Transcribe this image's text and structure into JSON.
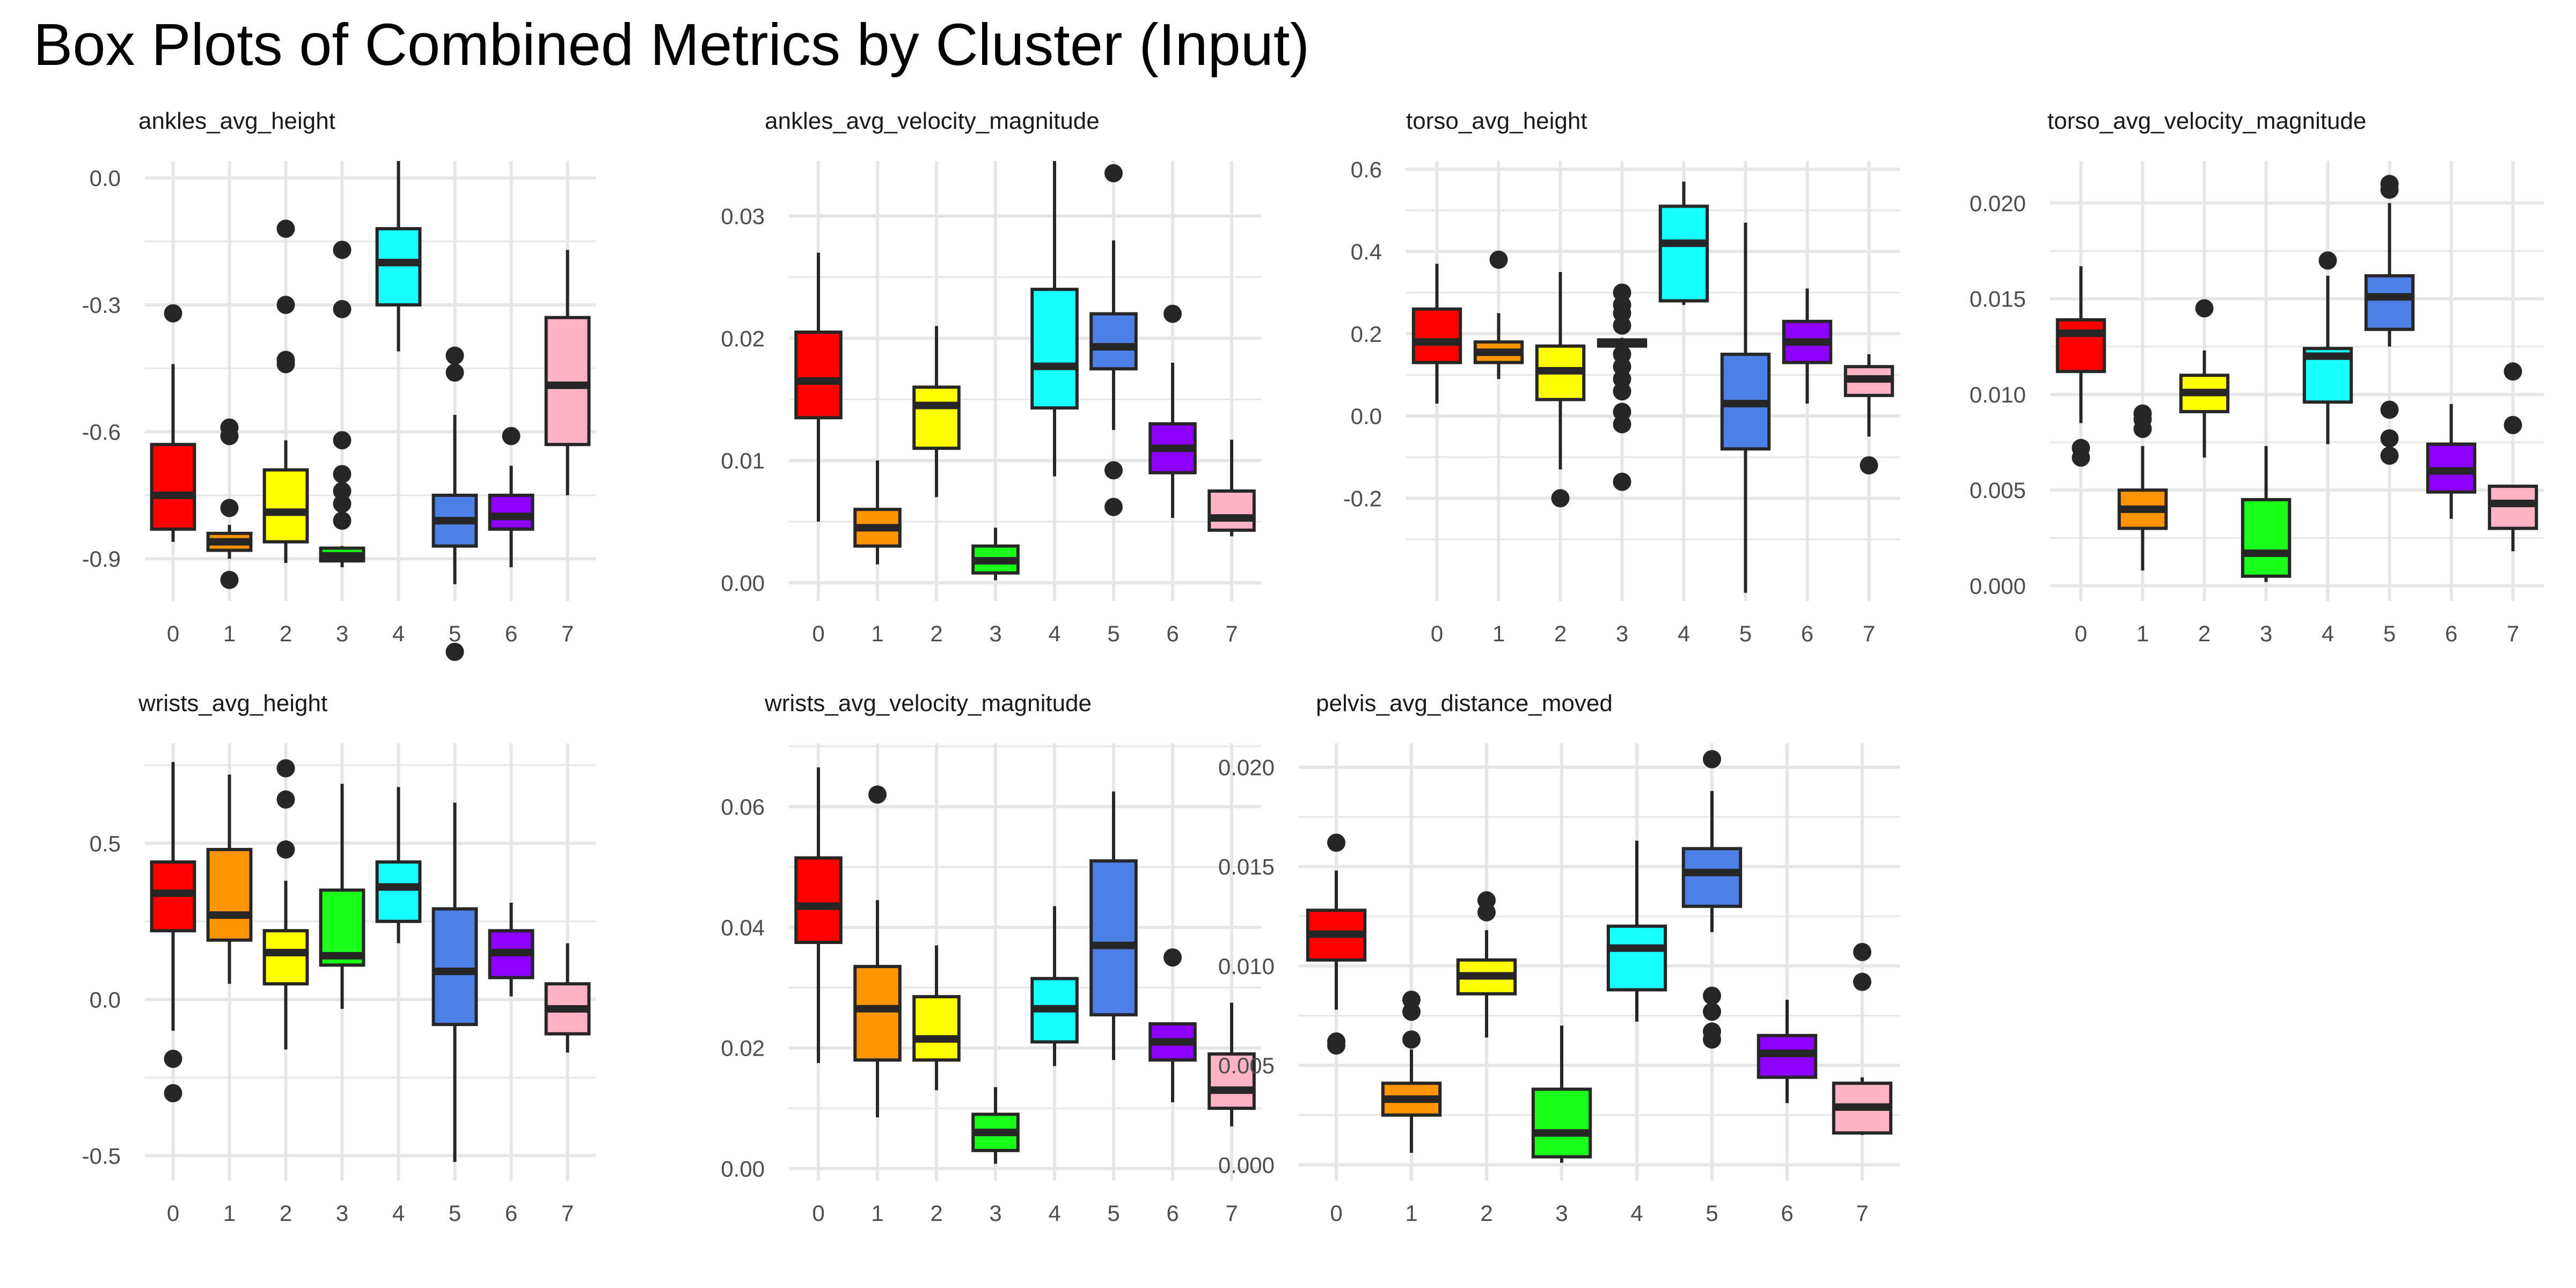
{
  "title": "Box Plots of Combined Metrics by Cluster (Input)",
  "colors": {
    "clusters": [
      "#ff0000",
      "#ff9400",
      "#ffff00",
      "#1aff1a",
      "#1affff",
      "#4d7fe6",
      "#8c00ff",
      "#ffb3c4"
    ],
    "grid": "#e6e6e6",
    "outline": "#262626",
    "tick_text": "#4d4d4d",
    "panel_title": "#1a1a1a"
  },
  "chart_data": [
    {
      "type": "box",
      "title": "ankles_avg_height",
      "categories": [
        "0",
        "1",
        "2",
        "3",
        "4",
        "5",
        "6",
        "7"
      ],
      "yticks": [
        0.0,
        -0.3,
        -0.6,
        -0.9
      ],
      "ytick_labels": [
        "0.0",
        "-0.3",
        "-0.6",
        "-0.9"
      ],
      "ylim": [
        -1.0,
        0.04
      ],
      "boxes": [
        {
          "min": -0.86,
          "q1": -0.83,
          "median": -0.75,
          "q3": -0.63,
          "max": -0.44,
          "outliers": [
            -0.32
          ]
        },
        {
          "min": -0.9,
          "q1": -0.88,
          "median": -0.86,
          "q3": -0.84,
          "max": -0.82,
          "outliers": [
            -0.59,
            -0.61,
            -0.78,
            -0.95
          ]
        },
        {
          "min": -0.91,
          "q1": -0.86,
          "median": -0.79,
          "q3": -0.69,
          "max": -0.62,
          "outliers": [
            -0.12,
            -0.3,
            -0.43,
            -0.44
          ]
        },
        {
          "min": -0.92,
          "q1": -0.905,
          "median": -0.893,
          "q3": -0.875,
          "max": -0.87,
          "outliers": [
            -0.17,
            -0.31,
            -0.62,
            -0.7,
            -0.74,
            -0.77,
            -0.81
          ]
        },
        {
          "min": -0.41,
          "q1": -0.3,
          "median": -0.2,
          "q3": -0.12,
          "max": 0.04,
          "outliers": []
        },
        {
          "min": -0.96,
          "q1": -0.87,
          "median": -0.81,
          "q3": -0.75,
          "max": -0.56,
          "outliers": [
            -0.42,
            -0.46,
            -1.12
          ]
        },
        {
          "min": -0.92,
          "q1": -0.83,
          "median": -0.8,
          "q3": -0.75,
          "max": -0.68,
          "outliers": [
            -0.61
          ]
        },
        {
          "min": -0.75,
          "q1": -0.63,
          "median": -0.49,
          "q3": -0.33,
          "max": -0.17,
          "outliers": []
        }
      ]
    },
    {
      "type": "box",
      "title": "ankles_avg_velocity_magnitude",
      "categories": [
        "0",
        "1",
        "2",
        "3",
        "4",
        "5",
        "6",
        "7"
      ],
      "yticks": [
        0.0,
        0.01,
        0.02,
        0.03
      ],
      "ytick_labels": [
        "0.00",
        "0.01",
        "0.02",
        "0.03"
      ],
      "ylim": [
        -0.0015,
        0.0345
      ],
      "boxes": [
        {
          "min": 0.005,
          "q1": 0.0135,
          "median": 0.0165,
          "q3": 0.0205,
          "max": 0.027,
          "outliers": []
        },
        {
          "min": 0.0015,
          "q1": 0.003,
          "median": 0.0045,
          "q3": 0.006,
          "max": 0.01,
          "outliers": []
        },
        {
          "min": 0.007,
          "q1": 0.011,
          "median": 0.0145,
          "q3": 0.016,
          "max": 0.021,
          "outliers": []
        },
        {
          "min": 0.0002,
          "q1": 0.0008,
          "median": 0.0018,
          "q3": 0.003,
          "max": 0.0045,
          "outliers": []
        },
        {
          "min": 0.0087,
          "q1": 0.0143,
          "median": 0.0177,
          "q3": 0.024,
          "max": 0.0345,
          "outliers": []
        },
        {
          "min": 0.0125,
          "q1": 0.0175,
          "median": 0.0193,
          "q3": 0.022,
          "max": 0.028,
          "outliers": [
            0.0335,
            0.0092,
            0.0062
          ]
        },
        {
          "min": 0.0053,
          "q1": 0.009,
          "median": 0.011,
          "q3": 0.013,
          "max": 0.018,
          "outliers": [
            0.022
          ]
        },
        {
          "min": 0.0038,
          "q1": 0.0043,
          "median": 0.0053,
          "q3": 0.0075,
          "max": 0.0117,
          "outliers": []
        }
      ]
    },
    {
      "type": "box",
      "title": "torso_avg_height",
      "categories": [
        "0",
        "1",
        "2",
        "3",
        "4",
        "5",
        "6",
        "7"
      ],
      "yticks": [
        -0.2,
        0.0,
        0.2,
        0.4,
        0.6
      ],
      "ytick_labels": [
        "-0.2",
        "0.0",
        "0.2",
        "0.4",
        "0.6"
      ],
      "ylim": [
        -0.45,
        0.62
      ],
      "boxes": [
        {
          "min": 0.03,
          "q1": 0.13,
          "median": 0.18,
          "q3": 0.26,
          "max": 0.37,
          "outliers": []
        },
        {
          "min": 0.09,
          "q1": 0.13,
          "median": 0.155,
          "q3": 0.18,
          "max": 0.25,
          "outliers": [
            0.38
          ]
        },
        {
          "min": -0.13,
          "q1": 0.04,
          "median": 0.11,
          "q3": 0.17,
          "max": 0.35,
          "outliers": [
            -0.2
          ]
        },
        {
          "min": 0.16,
          "q1": 0.17,
          "median": 0.177,
          "q3": 0.185,
          "max": 0.19,
          "outliers": [
            0.3,
            0.27,
            0.25,
            0.22,
            0.15,
            0.12,
            0.09,
            0.06,
            0.01,
            -0.02,
            -0.16
          ]
        },
        {
          "min": 0.27,
          "q1": 0.28,
          "median": 0.42,
          "q3": 0.51,
          "max": 0.57,
          "outliers": []
        },
        {
          "min": -0.43,
          "q1": -0.08,
          "median": 0.03,
          "q3": 0.15,
          "max": 0.47,
          "outliers": []
        },
        {
          "min": 0.03,
          "q1": 0.13,
          "median": 0.18,
          "q3": 0.23,
          "max": 0.31,
          "outliers": []
        },
        {
          "min": -0.05,
          "q1": 0.05,
          "median": 0.09,
          "q3": 0.12,
          "max": 0.15,
          "outliers": [
            -0.12
          ]
        }
      ]
    },
    {
      "type": "box",
      "title": "torso_avg_velocity_magnitude",
      "categories": [
        "0",
        "1",
        "2",
        "3",
        "4",
        "5",
        "6",
        "7"
      ],
      "yticks": [
        0.0,
        0.005,
        0.01,
        0.015,
        0.02
      ],
      "ytick_labels": [
        "0.000",
        "0.005",
        "0.010",
        "0.015",
        "0.020"
      ],
      "ylim": [
        -0.0008,
        0.0222
      ],
      "boxes": [
        {
          "min": 0.0085,
          "q1": 0.0112,
          "median": 0.0132,
          "q3": 0.0139,
          "max": 0.0167,
          "outliers": [
            0.0072,
            0.0067
          ]
        },
        {
          "min": 0.0008,
          "q1": 0.003,
          "median": 0.004,
          "q3": 0.005,
          "max": 0.0073,
          "outliers": [
            0.009,
            0.0087,
            0.0082
          ]
        },
        {
          "min": 0.0067,
          "q1": 0.0091,
          "median": 0.0101,
          "q3": 0.011,
          "max": 0.0123,
          "outliers": [
            0.0145
          ]
        },
        {
          "min": 0.0002,
          "q1": 0.0005,
          "median": 0.0017,
          "q3": 0.0045,
          "max": 0.0073,
          "outliers": []
        },
        {
          "min": 0.0074,
          "q1": 0.0096,
          "median": 0.012,
          "q3": 0.0124,
          "max": 0.0162,
          "outliers": [
            0.017
          ]
        },
        {
          "min": 0.0125,
          "q1": 0.0134,
          "median": 0.0151,
          "q3": 0.0162,
          "max": 0.02,
          "outliers": [
            0.021,
            0.0207,
            0.0092,
            0.0077,
            0.0068
          ]
        },
        {
          "min": 0.0035,
          "q1": 0.0049,
          "median": 0.006,
          "q3": 0.0074,
          "max": 0.0095,
          "outliers": []
        },
        {
          "min": 0.0018,
          "q1": 0.003,
          "median": 0.0043,
          "q3": 0.0052,
          "max": 0.0052,
          "outliers": [
            0.0112,
            0.0084
          ]
        }
      ]
    },
    {
      "type": "box",
      "title": "wrists_avg_height",
      "categories": [
        "0",
        "1",
        "2",
        "3",
        "4",
        "5",
        "6",
        "7"
      ],
      "yticks": [
        -0.5,
        0.0,
        0.5
      ],
      "ytick_labels": [
        "-0.5",
        "0.0",
        "0.5"
      ],
      "ylim": [
        -0.58,
        0.82
      ],
      "boxes": [
        {
          "min": -0.1,
          "q1": 0.22,
          "median": 0.34,
          "q3": 0.44,
          "max": 0.76,
          "outliers": [
            -0.19,
            -0.3
          ]
        },
        {
          "min": 0.05,
          "q1": 0.19,
          "median": 0.27,
          "q3": 0.48,
          "max": 0.72,
          "outliers": []
        },
        {
          "min": -0.16,
          "q1": 0.05,
          "median": 0.15,
          "q3": 0.22,
          "max": 0.38,
          "outliers": [
            0.74,
            0.64,
            0.48
          ]
        },
        {
          "min": -0.03,
          "q1": 0.11,
          "median": 0.14,
          "q3": 0.35,
          "max": 0.69,
          "outliers": []
        },
        {
          "min": 0.18,
          "q1": 0.25,
          "median": 0.36,
          "q3": 0.44,
          "max": 0.68,
          "outliers": []
        },
        {
          "min": -0.52,
          "q1": -0.08,
          "median": 0.09,
          "q3": 0.29,
          "max": 0.63,
          "outliers": []
        },
        {
          "min": 0.01,
          "q1": 0.07,
          "median": 0.15,
          "q3": 0.22,
          "max": 0.31,
          "outliers": []
        },
        {
          "min": -0.17,
          "q1": -0.11,
          "median": -0.03,
          "q3": 0.05,
          "max": 0.18,
          "outliers": []
        }
      ]
    },
    {
      "type": "box",
      "title": "wrists_avg_velocity_magnitude",
      "categories": [
        "0",
        "1",
        "2",
        "3",
        "4",
        "5",
        "6",
        "7"
      ],
      "yticks": [
        0.0,
        0.02,
        0.04,
        0.06
      ],
      "ytick_labels": [
        "0.00",
        "0.02",
        "0.04",
        "0.06"
      ],
      "ylim": [
        -0.002,
        0.0705
      ],
      "boxes": [
        {
          "min": 0.0175,
          "q1": 0.0375,
          "median": 0.0435,
          "q3": 0.0515,
          "max": 0.0665,
          "outliers": []
        },
        {
          "min": 0.0085,
          "q1": 0.018,
          "median": 0.0265,
          "q3": 0.0335,
          "max": 0.0445,
          "outliers": [
            0.062
          ]
        },
        {
          "min": 0.013,
          "q1": 0.018,
          "median": 0.0215,
          "q3": 0.0285,
          "max": 0.037,
          "outliers": []
        },
        {
          "min": 0.0008,
          "q1": 0.003,
          "median": 0.006,
          "q3": 0.009,
          "max": 0.0135,
          "outliers": []
        },
        {
          "min": 0.017,
          "q1": 0.021,
          "median": 0.0265,
          "q3": 0.0315,
          "max": 0.0435,
          "outliers": []
        },
        {
          "min": 0.018,
          "q1": 0.0255,
          "median": 0.037,
          "q3": 0.051,
          "max": 0.0625,
          "outliers": []
        },
        {
          "min": 0.011,
          "q1": 0.018,
          "median": 0.021,
          "q3": 0.024,
          "max": 0.024,
          "outliers": [
            0.035
          ]
        },
        {
          "min": 0.007,
          "q1": 0.01,
          "median": 0.013,
          "q3": 0.019,
          "max": 0.0275,
          "outliers": []
        }
      ]
    },
    {
      "type": "box",
      "title": "pelvis_avg_distance_moved",
      "categories": [
        "0",
        "1",
        "2",
        "3",
        "4",
        "5",
        "6",
        "7"
      ],
      "yticks": [
        0.0,
        0.005,
        0.01,
        0.015,
        0.02
      ],
      "ytick_labels": [
        "0.000",
        "0.005",
        "0.010",
        "0.015",
        "0.020"
      ],
      "ylim": [
        -0.0008,
        0.0212
      ],
      "boxes": [
        {
          "min": 0.0078,
          "q1": 0.0103,
          "median": 0.0116,
          "q3": 0.0128,
          "max": 0.0148,
          "outliers": [
            0.0162,
            0.0062,
            0.006
          ]
        },
        {
          "min": 0.0006,
          "q1": 0.0025,
          "median": 0.0033,
          "q3": 0.0041,
          "max": 0.0058,
          "outliers": [
            0.0083,
            0.0077,
            0.0063
          ]
        },
        {
          "min": 0.0064,
          "q1": 0.0086,
          "median": 0.0095,
          "q3": 0.0103,
          "max": 0.0118,
          "outliers": [
            0.0133,
            0.0127
          ]
        },
        {
          "min": 0.0001,
          "q1": 0.0004,
          "median": 0.0016,
          "q3": 0.0038,
          "max": 0.007,
          "outliers": []
        },
        {
          "min": 0.0072,
          "q1": 0.0088,
          "median": 0.0109,
          "q3": 0.012,
          "max": 0.0163,
          "outliers": []
        },
        {
          "min": 0.0117,
          "q1": 0.013,
          "median": 0.0147,
          "q3": 0.0159,
          "max": 0.0188,
          "outliers": [
            0.0204,
            0.0085,
            0.0077,
            0.0067,
            0.0063
          ]
        },
        {
          "min": 0.0031,
          "q1": 0.0044,
          "median": 0.0056,
          "q3": 0.0065,
          "max": 0.0083,
          "outliers": []
        },
        {
          "min": 0.0015,
          "q1": 0.0016,
          "median": 0.0029,
          "q3": 0.0041,
          "max": 0.0044,
          "outliers": [
            0.0107,
            0.0092
          ]
        }
      ]
    }
  ]
}
